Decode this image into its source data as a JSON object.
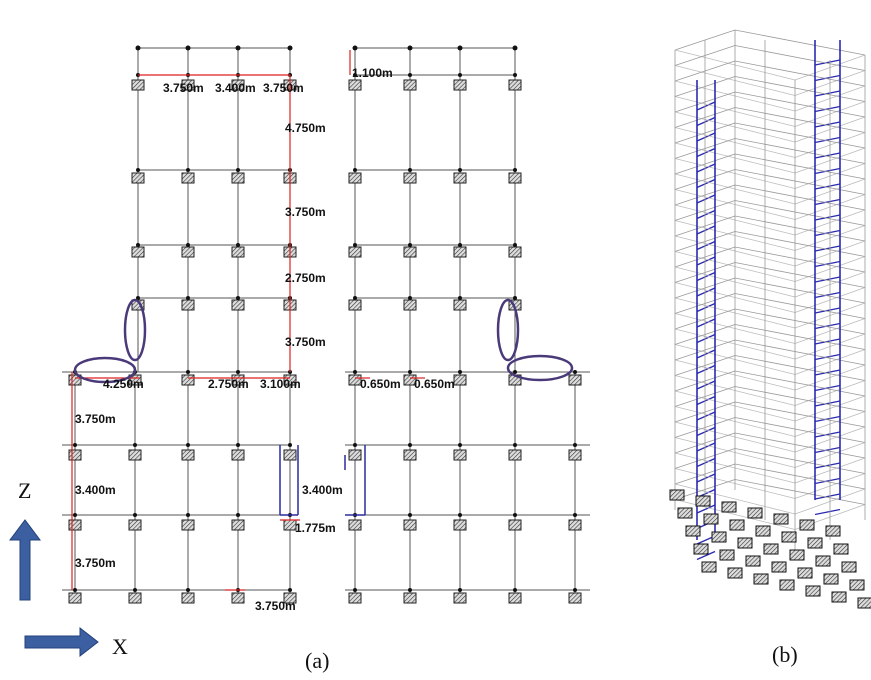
{
  "plan": {
    "dimensions": [
      "3.750m",
      "3.400m",
      "3.750m",
      "1.100m",
      "4.750m",
      "3.750m",
      "2.750m",
      "3.750m",
      "4.250m",
      "2.750m",
      "3.100m",
      "0.650m",
      "0.650m",
      "3.750m",
      "3.400m",
      "3.400m",
      "1.775m",
      "3.750m",
      "3.750m"
    ]
  },
  "axes": {
    "z": "Z",
    "x": "X"
  },
  "captions": {
    "a": "(a)",
    "b": "(b)"
  }
}
